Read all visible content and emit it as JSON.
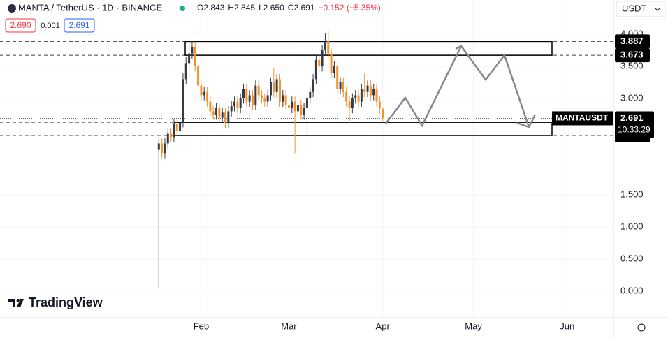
{
  "header": {
    "symbol": "MANTA / TetherUS · 1D · BINANCE",
    "ohlc": [
      "O2.843",
      "H2.845",
      "L2.650",
      "C2.691",
      "−0.152 (−5.35%)"
    ],
    "bid": "2.690",
    "spread": "0.001",
    "ask": "2.691",
    "currency": "USDT",
    "brand": "TradingView"
  },
  "chart_data": {
    "type": "candlestick",
    "title": "MANTAUSDT",
    "countdown": "10:33:29",
    "up_color": "#363a45",
    "down_color": "#f5922f",
    "x": [
      17,
      18,
      19,
      20,
      21,
      22,
      23,
      24,
      25,
      26,
      27,
      28,
      29,
      30,
      31,
      32,
      33,
      34,
      35,
      36,
      37,
      38,
      39,
      40,
      41,
      42,
      43,
      44,
      45,
      46,
      47,
      48,
      49,
      50,
      51,
      52,
      53,
      54,
      55,
      56,
      57,
      58,
      59,
      60,
      61,
      62,
      63,
      64,
      65,
      66,
      67,
      68,
      69,
      70,
      71,
      72,
      73,
      74,
      75,
      76,
      77,
      78,
      79,
      80,
      81,
      82,
      83,
      84,
      85,
      86,
      87,
      88,
      89,
      90,
      91
    ],
    "open": [
      2.2,
      2.3,
      2.15,
      2.3,
      2.45,
      2.4,
      2.6,
      2.5,
      2.62,
      3.3,
      3.55,
      3.7,
      3.8,
      3.5,
      3.2,
      3.05,
      3.1,
      2.95,
      2.8,
      2.75,
      2.85,
      2.7,
      2.78,
      2.62,
      2.8,
      2.88,
      2.95,
      2.85,
      3.0,
      3.15,
      2.95,
      3.05,
      2.9,
      3.2,
      3.05,
      3.0,
      2.95,
      3.05,
      3.25,
      3.1,
      3.3,
      2.95,
      3.05,
      2.9,
      2.85,
      2.95,
      2.8,
      2.9,
      2.75,
      2.85,
      3.0,
      3.1,
      3.3,
      3.6,
      3.5,
      3.75,
      3.9,
      3.7,
      3.4,
      3.5,
      3.15,
      3.25,
      3.1,
      2.95,
      2.85,
      3.0,
      3.05,
      2.95,
      3.15,
      3.1,
      3.2,
      3.05,
      3.15,
      2.95,
      2.843
    ],
    "high": [
      2.4,
      2.38,
      2.38,
      2.53,
      2.53,
      2.68,
      2.68,
      2.7,
      3.4,
      3.65,
      3.85,
      3.9,
      3.88,
      3.58,
      3.28,
      3.18,
      3.18,
      3.03,
      2.88,
      2.93,
      2.93,
      2.86,
      2.86,
      2.88,
      2.96,
      3.03,
      3.03,
      3.08,
      3.23,
      3.23,
      3.13,
      3.13,
      3.28,
      3.28,
      3.13,
      3.08,
      3.13,
      3.33,
      3.48,
      3.38,
      3.38,
      3.13,
      3.13,
      2.98,
      3.03,
      3.03,
      2.98,
      2.98,
      2.93,
      3.08,
      3.18,
      3.38,
      3.68,
      3.68,
      3.83,
      4.02,
      4.06,
      3.78,
      3.58,
      3.58,
      3.33,
      3.33,
      3.18,
      3.03,
      3.08,
      3.13,
      3.13,
      3.23,
      3.4,
      3.28,
      3.28,
      3.23,
      3.23,
      3.03,
      2.845
    ],
    "low": [
      0.05,
      2.07,
      2.07,
      2.22,
      2.32,
      2.32,
      2.42,
      2.42,
      2.55,
      3.22,
      3.47,
      3.62,
      3.42,
      3.12,
      2.97,
      2.97,
      2.87,
      2.72,
      2.67,
      2.67,
      2.62,
      2.62,
      2.54,
      2.54,
      2.72,
      2.8,
      2.77,
      2.77,
      2.92,
      2.87,
      2.87,
      2.82,
      2.82,
      2.97,
      2.92,
      2.87,
      2.87,
      2.97,
      3.02,
      3.02,
      2.87,
      2.87,
      2.82,
      2.77,
      2.77,
      2.15,
      2.72,
      2.67,
      2.67,
      2.4,
      2.92,
      3.02,
      3.22,
      3.42,
      3.42,
      3.67,
      3.62,
      3.32,
      3.32,
      3.07,
      3.07,
      3.02,
      2.87,
      2.62,
      2.77,
      2.92,
      2.87,
      2.87,
      3.02,
      3.02,
      2.97,
      2.97,
      2.87,
      2.76,
      2.65
    ],
    "close": [
      2.3,
      2.15,
      2.3,
      2.45,
      2.4,
      2.6,
      2.5,
      2.62,
      3.3,
      3.55,
      3.7,
      3.8,
      3.5,
      3.2,
      3.05,
      3.1,
      2.95,
      2.8,
      2.75,
      2.85,
      2.7,
      2.78,
      2.62,
      2.8,
      2.88,
      2.95,
      2.85,
      3.0,
      3.15,
      2.95,
      3.05,
      2.9,
      3.2,
      3.05,
      3.0,
      2.95,
      3.05,
      3.25,
      3.1,
      3.3,
      2.95,
      3.05,
      2.9,
      2.85,
      2.95,
      2.8,
      2.9,
      2.75,
      2.85,
      3.0,
      3.1,
      3.3,
      3.6,
      3.5,
      3.75,
      3.9,
      3.7,
      3.4,
      3.5,
      3.15,
      3.25,
      3.1,
      2.95,
      2.85,
      3.0,
      3.05,
      2.95,
      3.15,
      3.1,
      3.2,
      3.05,
      3.15,
      2.95,
      2.843,
      2.691
    ],
    "last_price": 2.691,
    "levels": [
      3.887,
      3.673,
      2.629,
      2.424
    ],
    "xlim": [
      -35.5,
      167.3
    ],
    "xticks": [
      {
        "value": 31,
        "label": "Feb"
      },
      {
        "value": 60,
        "label": "Mar"
      },
      {
        "value": 91,
        "label": "Apr"
      },
      {
        "value": 121,
        "label": "May"
      },
      {
        "value": 152,
        "label": "Jun"
      }
    ],
    "ylim": [
      -0.413,
      4.533
    ],
    "yticks": [
      {
        "value": 0,
        "label": "0.000"
      },
      {
        "value": 0.5,
        "label": "0.500"
      },
      {
        "value": 1,
        "label": "1.000"
      },
      {
        "value": 1.5,
        "label": "1.500"
      },
      {
        "value": 3,
        "label": "3.000"
      },
      {
        "value": 3.5,
        "label": "3.500"
      },
      {
        "value": 4,
        "label": "4.000"
      }
    ],
    "grid": true
  }
}
